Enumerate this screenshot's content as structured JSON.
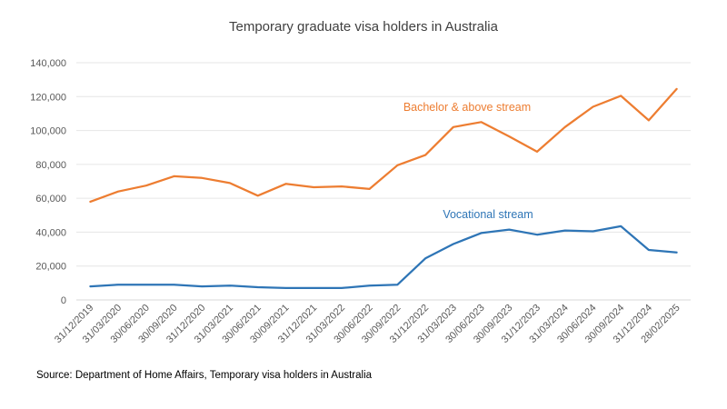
{
  "chart_data": {
    "type": "line",
    "title": "Temporary graduate visa holders in Australia",
    "xlabel": "",
    "ylabel": "",
    "ylim": [
      0,
      140000
    ],
    "yticks": [
      "0",
      "20,000",
      "40,000",
      "60,000",
      "80,000",
      "100,000",
      "120,000",
      "140,000"
    ],
    "grid": true,
    "categories": [
      "31/12/2019",
      "31/03/2020",
      "30/06/2020",
      "30/09/2020",
      "31/12/2020",
      "31/03/2021",
      "30/06/2021",
      "30/09/2021",
      "31/12/2021",
      "31/03/2022",
      "30/06/2022",
      "30/09/2022",
      "31/12/2022",
      "31/03/2023",
      "30/06/2023",
      "30/09/2023",
      "31/12/2023",
      "31/03/2024",
      "30/06/2024",
      "30/09/2024",
      "31/12/2024",
      "28/02/2025"
    ],
    "series": [
      {
        "name": "Bachelor & above stream",
        "color": "#ED7D31",
        "values": [
          58000,
          64000,
          67500,
          73000,
          72000,
          69000,
          61500,
          68500,
          66500,
          67000,
          65500,
          79500,
          85500,
          102000,
          105000,
          96500,
          87500,
          102000,
          114000,
          120500,
          106000,
          124500
        ]
      },
      {
        "name": "Vocational stream",
        "color": "#2E75B6",
        "values": [
          8000,
          9000,
          9000,
          9000,
          8000,
          8500,
          7500,
          7000,
          7000,
          7000,
          8500,
          9000,
          24500,
          33000,
          39500,
          41500,
          38500,
          41000,
          40500,
          43500,
          29500,
          28000
        ]
      }
    ]
  },
  "source": "Source: Department of Home Affairs, Temporary visa holders in Australia"
}
